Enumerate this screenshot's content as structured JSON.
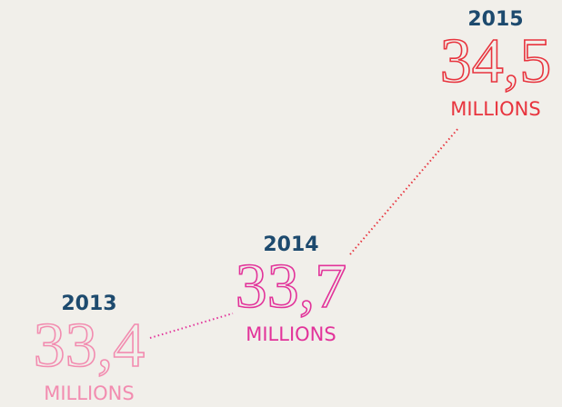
{
  "items": [
    {
      "year": "2013",
      "value": "33,4",
      "unit": "MILLIONS",
      "color": "#f28cb0"
    },
    {
      "year": "2014",
      "value": "33,7",
      "unit": "MILLIONS",
      "color": "#e2339a"
    },
    {
      "year": "2015",
      "value": "34,5",
      "unit": "MILLIONS",
      "color": "#e8343e"
    }
  ]
}
